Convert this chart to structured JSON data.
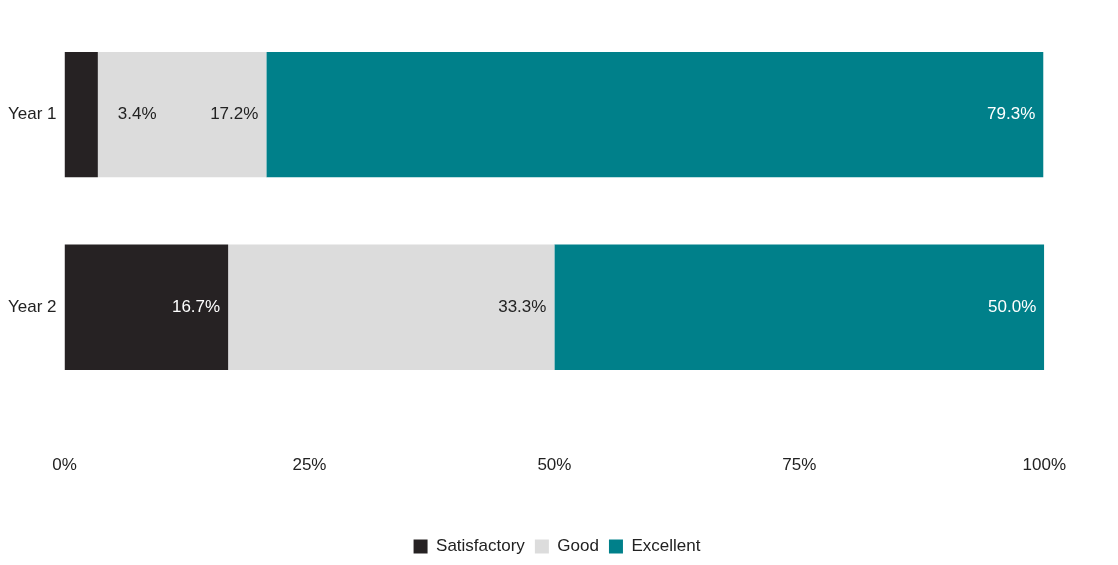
{
  "chart_data": {
    "type": "bar",
    "orientation": "horizontal",
    "stacked": true,
    "categories": [
      "Year 1",
      "Year 2"
    ],
    "series": [
      {
        "name": "Satisfactory",
        "color": "#262223",
        "values": [
          3.4,
          16.7
        ],
        "value_labels": [
          "3.4%",
          "16.7%"
        ]
      },
      {
        "name": "Good",
        "color": "#dcdcdc",
        "values": [
          17.2,
          33.3
        ],
        "value_labels": [
          "17.2%",
          "33.3%"
        ]
      },
      {
        "name": "Excellent",
        "color": "#00808a",
        "values": [
          79.3,
          50.0
        ],
        "value_labels": [
          "79.3%",
          "50.0%"
        ]
      }
    ],
    "xlim": [
      0,
      100
    ],
    "xticks": [
      {
        "value": 0,
        "label": "0%"
      },
      {
        "value": 25,
        "label": "25%"
      },
      {
        "value": 50,
        "label": "50%"
      },
      {
        "value": 75,
        "label": "75%"
      },
      {
        "value": 100,
        "label": "100%"
      }
    ],
    "grid": false,
    "legend": "bottom"
  }
}
